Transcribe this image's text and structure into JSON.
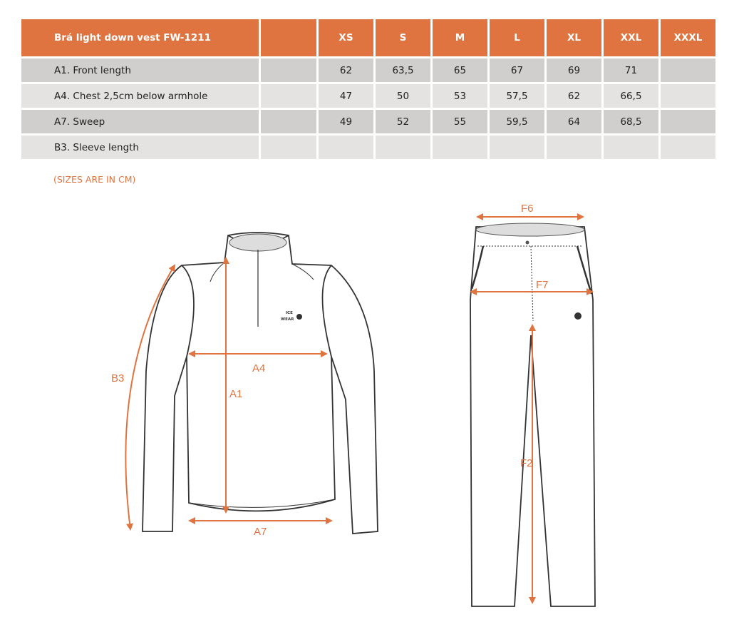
{
  "table": {
    "title": "Brá light down vest FW-1211",
    "sizes": [
      "XS",
      "S",
      "M",
      "L",
      "XL",
      "XXL",
      "XXXL"
    ],
    "rows": [
      {
        "label": "A1. Front length",
        "values": [
          "62",
          "63,5",
          "65",
          "67",
          "69",
          "71",
          ""
        ]
      },
      {
        "label": "A4. Chest 2,5cm below armhole",
        "values": [
          "47",
          "50",
          "53",
          "57,5",
          "62",
          "66,5",
          ""
        ]
      },
      {
        "label": "A7. Sweep",
        "values": [
          "49",
          "52",
          "55",
          "59,5",
          "64",
          "68,5",
          ""
        ]
      },
      {
        "label": "B3. Sleeve length",
        "values": [
          "",
          "",
          "",
          "",
          "",
          "",
          ""
        ]
      }
    ]
  },
  "note": "(SIZES ARE IN CM)",
  "diagram": {
    "shirt_labels": {
      "b3": "B3",
      "a4": "A4",
      "a1": "A1",
      "a7": "A7"
    },
    "pants_labels": {
      "f6": "F6",
      "f7": "F7",
      "f2": "F2"
    },
    "logo": "ICE WEAR"
  },
  "colors": {
    "accent": "#e07440",
    "row_dark": "#d0cfcd",
    "row_light": "#e4e3e1"
  }
}
